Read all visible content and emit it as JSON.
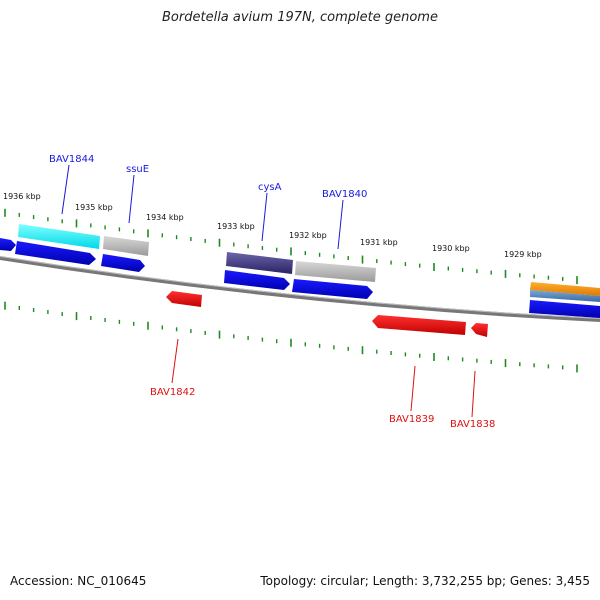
{
  "title": "Bordetella avium 197N, complete genome",
  "footer": {
    "accession": "Accession: NC_010645",
    "topology": "Topology: circular; Length: 3,732,255 bp; Genes: 3,455"
  },
  "colors": {
    "backbone": "#777777",
    "tick": "#1f8a1f",
    "forward_gene": "#0000e0",
    "reverse_gene": "#e00000",
    "label_forward": "#1a1adc",
    "label_reverse": "#e01010"
  },
  "kbp_labels": [
    "1936 kbp",
    "1935 kbp",
    "1934 kbp",
    "1933 kbp",
    "1932 kbp",
    "1931 kbp",
    "1930 kbp",
    "1929 kbp"
  ],
  "gene_labels": {
    "bav1844": "BAV1844",
    "ssue": "ssuE",
    "cysa": "cysA",
    "bav1840": "BAV1840",
    "bav1842": "BAV1842",
    "bav1839": "BAV1839",
    "bav1838": "BAV1838"
  }
}
